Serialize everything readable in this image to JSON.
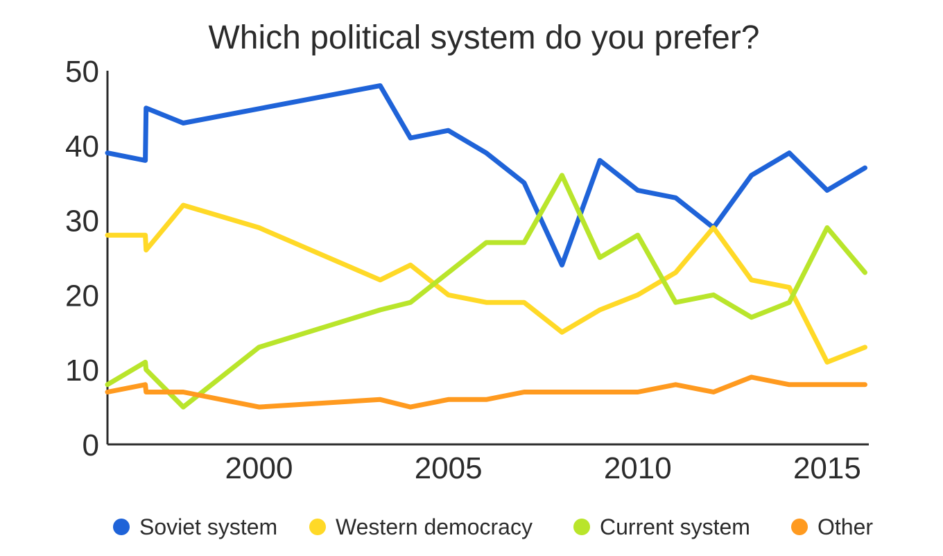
{
  "chart_data": {
    "type": "line",
    "title": "Which political system do you prefer?",
    "xlabel": "",
    "ylabel": "",
    "ylim": [
      0,
      50
    ],
    "xlim": [
      1996,
      2016.1
    ],
    "y_ticks": [
      "0",
      "10",
      "20",
      "30",
      "40",
      "50"
    ],
    "x_ticks": [
      "2000",
      "2005",
      "2010",
      "2015"
    ],
    "grid": false,
    "legend_position": "bottom",
    "series": [
      {
        "name": "Soviet system",
        "color": "#1f63d8",
        "points": [
          [
            1996,
            39
          ],
          [
            1997,
            38
          ],
          [
            1997.02,
            45
          ],
          [
            1998,
            43
          ],
          [
            2003.2,
            48
          ],
          [
            2004,
            41
          ],
          [
            2005,
            42
          ],
          [
            2006,
            39
          ],
          [
            2007,
            35
          ],
          [
            2008,
            24
          ],
          [
            2009,
            38
          ],
          [
            2010,
            34
          ],
          [
            2011,
            33
          ],
          [
            2012,
            29
          ],
          [
            2013,
            36
          ],
          [
            2014,
            39
          ],
          [
            2015,
            34
          ],
          [
            2016,
            37
          ]
        ]
      },
      {
        "name": "Western democracy",
        "color": "#ffd927",
        "points": [
          [
            1996,
            28
          ],
          [
            1997,
            28
          ],
          [
            1997.02,
            26
          ],
          [
            1998,
            32
          ],
          [
            2000,
            29
          ],
          [
            2003.2,
            22
          ],
          [
            2004,
            24
          ],
          [
            2005,
            20
          ],
          [
            2006,
            19
          ],
          [
            2007,
            19
          ],
          [
            2008,
            15
          ],
          [
            2009,
            18
          ],
          [
            2010,
            20
          ],
          [
            2011,
            23
          ],
          [
            2012,
            29
          ],
          [
            2013,
            22
          ],
          [
            2014,
            21
          ],
          [
            2015,
            11
          ],
          [
            2016,
            13
          ]
        ]
      },
      {
        "name": "Current system",
        "color": "#b9e52b",
        "points": [
          [
            1996,
            8
          ],
          [
            1997,
            11
          ],
          [
            1997.02,
            10
          ],
          [
            1998,
            5
          ],
          [
            2000,
            13
          ],
          [
            2003.2,
            18
          ],
          [
            2004,
            19
          ],
          [
            2005,
            23
          ],
          [
            2006,
            27
          ],
          [
            2007,
            27
          ],
          [
            2008,
            36
          ],
          [
            2009,
            25
          ],
          [
            2010,
            28
          ],
          [
            2011,
            19
          ],
          [
            2012,
            20
          ],
          [
            2013,
            17
          ],
          [
            2014,
            19
          ],
          [
            2015,
            29
          ],
          [
            2016,
            23
          ]
        ]
      },
      {
        "name": "Other",
        "color": "#ff9a1f",
        "points": [
          [
            1996,
            7
          ],
          [
            1997,
            8
          ],
          [
            1997.02,
            7
          ],
          [
            1998,
            7
          ],
          [
            2000,
            5
          ],
          [
            2003.2,
            6
          ],
          [
            2004,
            5
          ],
          [
            2005,
            6
          ],
          [
            2006,
            6
          ],
          [
            2007,
            7
          ],
          [
            2008,
            7
          ],
          [
            2009,
            7
          ],
          [
            2010,
            7
          ],
          [
            2011,
            8
          ],
          [
            2012,
            7
          ],
          [
            2013,
            9
          ],
          [
            2014,
            8
          ],
          [
            2015,
            8
          ],
          [
            2016,
            8
          ]
        ]
      }
    ]
  }
}
